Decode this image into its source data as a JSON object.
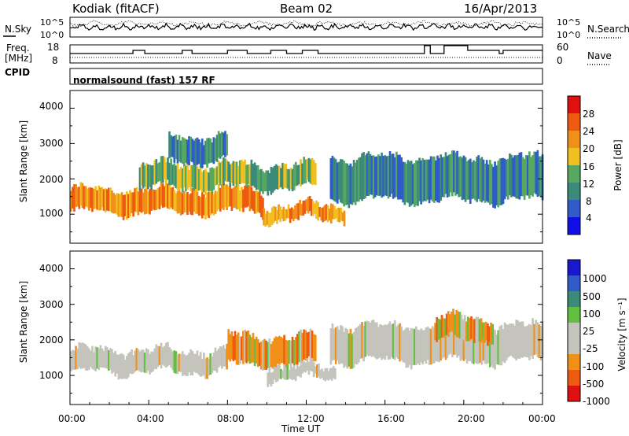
{
  "header": {
    "station": "Kodiak (fitACF)",
    "beam": "Beam 02",
    "date": "16/Apr/2013"
  },
  "noise_panel": {
    "left_label": "N.Sky",
    "right_label": "N.Search",
    "ticks": [
      "10^5",
      "10^0"
    ]
  },
  "freq_panel": {
    "left_label_top": "Freq.",
    "left_label_bottom": "[MHz]",
    "left_ticks": [
      "18",
      "8"
    ],
    "right_ticks": [
      "60",
      "0"
    ],
    "right_label": "Nave",
    "cpid_label": "CPID"
  },
  "cpid_text": "normalsound (fast) 157 RF",
  "colors": {
    "power": [
      "#1010e6",
      "#2f5cc8",
      "#3c8a7a",
      "#56a860",
      "#f0c020",
      "#f09018",
      "#ee5a10",
      "#e01010"
    ],
    "velocity": [
      "#e01010",
      "#ee5a10",
      "#f09018",
      "#c4c4bc",
      "#c4c4bc",
      "#62c040",
      "#3c8a7a",
      "#2f5cc8",
      "#1818d0"
    ]
  },
  "chart_data": [
    {
      "type": "heatmap",
      "panel": "power",
      "xlabel": "",
      "ylabel": "Slant Range [km]",
      "ylim": [
        180,
        4500
      ],
      "yticks": [
        "4000",
        "3000",
        "2000",
        "1000"
      ],
      "colorbar_label": "Power [dB]",
      "colorbar_ticks": [
        "28",
        "24",
        "20",
        "16",
        "12",
        "8",
        "4"
      ],
      "colorbar_range": [
        0,
        32
      ],
      "echo_bands": [
        {
          "t_start": 0.0,
          "t_end": 9.8,
          "range_low": 1050,
          "range_high": 1700,
          "power_db": 22
        },
        {
          "t_start": 9.8,
          "t_end": 14.0,
          "range_low": 850,
          "range_high": 1250,
          "power_db": 20
        },
        {
          "t_start": 3.5,
          "t_end": 12.5,
          "range_low": 1750,
          "range_high": 2400,
          "power_db": 14
        },
        {
          "t_start": 5.0,
          "t_end": 8.0,
          "range_low": 2500,
          "range_high": 3200,
          "power_db": 10
        },
        {
          "t_start": 13.2,
          "t_end": 24.0,
          "range_low": 1400,
          "range_high": 2600,
          "power_db": 8
        }
      ]
    },
    {
      "type": "heatmap",
      "panel": "velocity",
      "xlabel": "Time UT",
      "ylabel": "Slant Range [km]",
      "ylim": [
        180,
        4500
      ],
      "yticks": [
        "4000",
        "3000",
        "2000",
        "1000"
      ],
      "xticks": [
        "00:00",
        "04:00",
        "08:00",
        "12:00",
        "16:00",
        "20:00",
        "00:00"
      ],
      "xlim_hours": [
        0,
        24
      ],
      "colorbar_label": "Velocity [m s⁻¹]",
      "colorbar_ticks": [
        "1000",
        "500",
        "100",
        "25",
        "-25",
        "-100",
        "-500",
        "-1000"
      ],
      "echo_bands": [
        {
          "t_start": 0.0,
          "t_end": 8.0,
          "range_low": 1100,
          "range_high": 1700,
          "velocity": 0
        },
        {
          "t_start": 8.0,
          "t_end": 12.5,
          "range_low": 1300,
          "range_high": 2100,
          "velocity": -200
        },
        {
          "t_start": 10.0,
          "t_end": 13.5,
          "range_low": 900,
          "range_high": 1250,
          "velocity": 0
        },
        {
          "t_start": 13.2,
          "t_end": 24.0,
          "range_low": 1400,
          "range_high": 2400,
          "velocity": 0
        },
        {
          "t_start": 18.5,
          "t_end": 21.5,
          "range_low": 2000,
          "range_high": 2600,
          "velocity": -150
        }
      ]
    }
  ]
}
